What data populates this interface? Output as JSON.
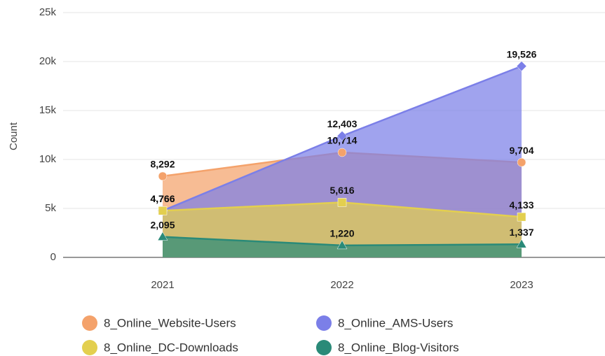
{
  "chart_data": {
    "type": "area",
    "y_label": "Count",
    "categories": [
      "2021",
      "2022",
      "2023"
    ],
    "series": [
      {
        "name": "8_Online_Website-Users",
        "color": "#f4a26b",
        "marker": "circle",
        "values": [
          8292,
          10714,
          9704
        ],
        "value_labels": [
          "8,292",
          "10,714",
          "9,704"
        ]
      },
      {
        "name": "8_Online_AMS-Users",
        "color": "#7b7fe8",
        "marker": "diamond",
        "values": [
          4766,
          12403,
          19526
        ],
        "value_labels": [
          "4,766",
          "12,403",
          "19,526"
        ]
      },
      {
        "name": "8_Online_DC-Downloads",
        "color": "#e3cf4f",
        "marker": "square",
        "values": [
          4766,
          5616,
          4133
        ],
        "value_labels": [
          "4,766",
          "5,616",
          "4,133"
        ]
      },
      {
        "name": "8_Online_Blog-Visitors",
        "color": "#2a8a78",
        "marker": "triangle",
        "values": [
          2095,
          1220,
          1337
        ],
        "value_labels": [
          "2,095",
          "1,220",
          "1,337"
        ]
      }
    ],
    "ylim": [
      0,
      25000
    ],
    "yticks": [
      0,
      {
        "value": 5000,
        "label": "5k"
      },
      {
        "value": 10000,
        "label": "10k"
      },
      {
        "value": 15000,
        "label": "15k"
      },
      {
        "value": 20000,
        "label": "20k"
      },
      {
        "value": 25000,
        "label": "25k"
      }
    ],
    "grid": true
  }
}
